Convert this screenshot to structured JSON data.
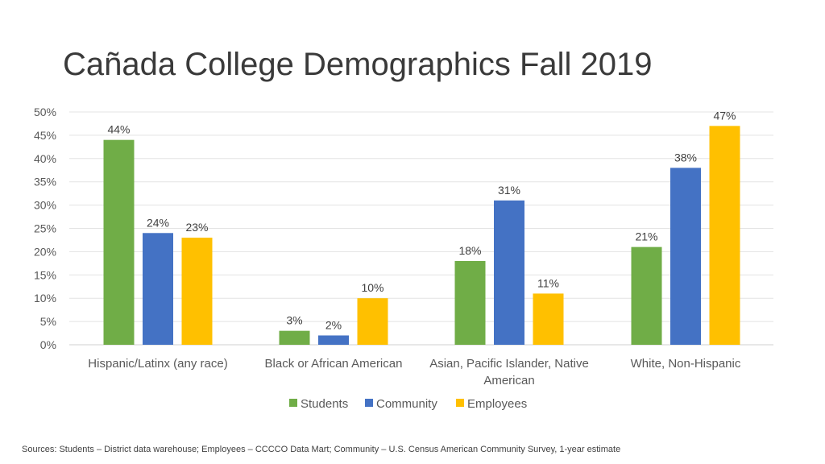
{
  "slide": {
    "title": "Cañada College Demographics Fall 2019",
    "sources": "Sources:  Students – District data warehouse; Employees – CCCCO Data Mart; Community – U.S. Census American Community Survey, 1-year estimate"
  },
  "chart_data": {
    "type": "bar",
    "title": "",
    "xlabel": "",
    "ylabel": "",
    "ylim": [
      0,
      50
    ],
    "yticks": [
      "0%",
      "5%",
      "10%",
      "15%",
      "20%",
      "25%",
      "30%",
      "35%",
      "40%",
      "45%",
      "50%"
    ],
    "grid": true,
    "legend_position": "bottom",
    "categories": [
      [
        "Hispanic/Latinx (any race)"
      ],
      [
        "Black or African American"
      ],
      [
        "Asian, Pacific Islander, Native",
        "American"
      ],
      [
        "White, Non-Hispanic"
      ]
    ],
    "series": [
      {
        "name": "Students",
        "color": "#70ad47",
        "values": [
          44,
          3,
          18,
          21
        ],
        "labels": [
          "44%",
          "3%",
          "18%",
          "21%"
        ]
      },
      {
        "name": "Community",
        "color": "#4472c4",
        "values": [
          24,
          2,
          31,
          38
        ],
        "labels": [
          "24%",
          "2%",
          "31%",
          "38%"
        ]
      },
      {
        "name": "Employees",
        "color": "#ffc000",
        "values": [
          23,
          10,
          11,
          47
        ],
        "labels": [
          "23%",
          "10%",
          "11%",
          "47%"
        ]
      }
    ]
  }
}
